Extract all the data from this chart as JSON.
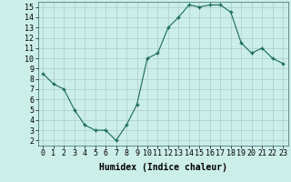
{
  "x": [
    0,
    1,
    2,
    3,
    4,
    5,
    6,
    7,
    8,
    9,
    10,
    11,
    12,
    13,
    14,
    15,
    16,
    17,
    18,
    19,
    20,
    21,
    22,
    23
  ],
  "y": [
    8.5,
    7.5,
    7.0,
    5.0,
    3.5,
    3.0,
    3.0,
    2.0,
    3.5,
    5.5,
    10.0,
    10.5,
    13.0,
    14.0,
    15.2,
    15.0,
    15.2,
    15.2,
    14.5,
    11.5,
    10.5,
    11.0,
    10.0,
    9.5
  ],
  "line_color": "#1a6b5a",
  "marker": "+",
  "marker_size": 3.5,
  "marker_lw": 1.0,
  "background_color": "#cceee8",
  "grid_color": "#aacccc",
  "xlabel": "Humidex (Indice chaleur)",
  "xlim": [
    -0.5,
    23.5
  ],
  "ylim": [
    1.5,
    15.5
  ],
  "yticks": [
    2,
    3,
    4,
    5,
    6,
    7,
    8,
    9,
    10,
    11,
    12,
    13,
    14,
    15
  ],
  "xticks": [
    0,
    1,
    2,
    3,
    4,
    5,
    6,
    7,
    8,
    9,
    10,
    11,
    12,
    13,
    14,
    15,
    16,
    17,
    18,
    19,
    20,
    21,
    22,
    23
  ],
  "xlabel_fontsize": 7,
  "tick_fontsize": 6,
  "line_width": 0.8
}
